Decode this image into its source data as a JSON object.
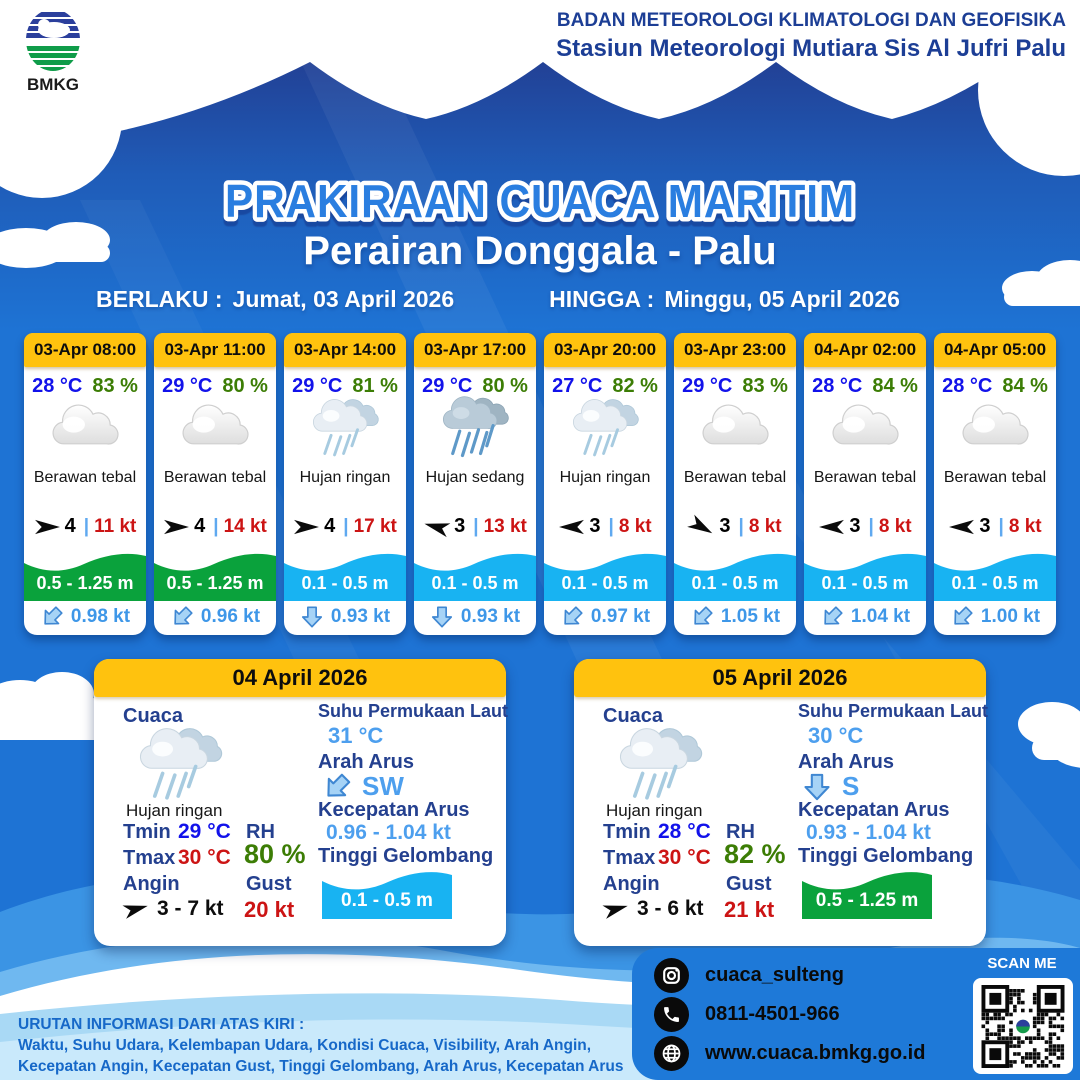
{
  "header": {
    "logo_label": "BMKG",
    "agency_line1": "BADAN METEOROLOGI KLIMATOLOGI DAN GEOFISIKA",
    "agency_line2": "Stasiun Meteorologi Mutiara Sis Al Jufri Palu"
  },
  "title": {
    "main": "PRAKIRAAN CUACA MARITIM",
    "subtitle": "Perairan Donggala - Palu",
    "valid_from_label": "BERLAKU :",
    "valid_from_value": "Jumat, 03 April 2026",
    "valid_to_label": "HINGGA :",
    "valid_to_value": "Minggu, 05 April 2026"
  },
  "misc": {
    "divider": "|"
  },
  "hourly": [
    {
      "time": "03-Apr 08:00",
      "temp": "28 °C",
      "humidity": "83 %",
      "icon": "berawan-tebal",
      "condition": "Berawan tebal",
      "visibility": "4",
      "wind_speed": "11 kt",
      "wind_dir_deg": 0,
      "wave_height": "0.5 - 1.25 m",
      "wave_color": "#0AA23C",
      "current_speed": "0.98 kt",
      "current_dir": "SW",
      "current_dir_deg": 45
    },
    {
      "time": "03-Apr 11:00",
      "temp": "29 °C",
      "humidity": "80 %",
      "icon": "berawan-tebal",
      "condition": "Berawan tebal",
      "visibility": "4",
      "wind_speed": "14 kt",
      "wind_dir_deg": 0,
      "wave_height": "0.5 - 1.25 m",
      "wave_color": "#0AA23C",
      "current_speed": "0.96 kt",
      "current_dir": "SW",
      "current_dir_deg": 45
    },
    {
      "time": "03-Apr 14:00",
      "temp": "29 °C",
      "humidity": "81 %",
      "icon": "hujan-ringan",
      "condition": "Hujan ringan",
      "visibility": "4",
      "wind_speed": "17 kt",
      "wind_dir_deg": 0,
      "wave_height": "0.1 - 0.5 m",
      "wave_color": "#18B3F2",
      "current_speed": "0.93 kt",
      "current_dir": "S",
      "current_dir_deg": 0
    },
    {
      "time": "03-Apr 17:00",
      "temp": "29 °C",
      "humidity": "80 %",
      "icon": "hujan-sedang",
      "condition": "Hujan sedang",
      "visibility": "3",
      "wind_speed": "13 kt",
      "wind_dir_deg": 195,
      "wave_height": "0.1 - 0.5 m",
      "wave_color": "#18B3F2",
      "current_speed": "0.93 kt",
      "current_dir": "S",
      "current_dir_deg": 0
    },
    {
      "time": "03-Apr 20:00",
      "temp": "27 °C",
      "humidity": "82 %",
      "icon": "hujan-ringan",
      "condition": "Hujan ringan",
      "visibility": "3",
      "wind_speed": "8 kt",
      "wind_dir_deg": 180,
      "wave_height": "0.1 - 0.5 m",
      "wave_color": "#18B3F2",
      "current_speed": "0.97 kt",
      "current_dir": "SW",
      "current_dir_deg": 45
    },
    {
      "time": "03-Apr 23:00",
      "temp": "29 °C",
      "humidity": "83 %",
      "icon": "berawan-tebal",
      "condition": "Berawan tebal",
      "visibility": "3",
      "wind_speed": "8 kt",
      "wind_dir_deg": 30,
      "wave_height": "0.1 - 0.5 m",
      "wave_color": "#18B3F2",
      "current_speed": "1.05 kt",
      "current_dir": "SW",
      "current_dir_deg": 45
    },
    {
      "time": "04-Apr 02:00",
      "temp": "28 °C",
      "humidity": "84 %",
      "icon": "berawan-tebal",
      "condition": "Berawan tebal",
      "visibility": "3",
      "wind_speed": "8 kt",
      "wind_dir_deg": 180,
      "wave_height": "0.1 - 0.5 m",
      "wave_color": "#18B3F2",
      "current_speed": "1.04 kt",
      "current_dir": "SW",
      "current_dir_deg": 45
    },
    {
      "time": "04-Apr 05:00",
      "temp": "28 °C",
      "humidity": "84 %",
      "icon": "berawan-tebal",
      "condition": "Berawan tebal",
      "visibility": "3",
      "wind_speed": "8 kt",
      "wind_dir_deg": 180,
      "wave_height": "0.1 - 0.5 m",
      "wave_color": "#18B3F2",
      "current_speed": "1.00 kt",
      "current_dir": "SW",
      "current_dir_deg": 45
    }
  ],
  "daily": [
    {
      "date": "04 April 2026",
      "cuaca_label": "Cuaca",
      "icon": "hujan-ringan",
      "condition": "Hujan ringan",
      "tmin_label": "Tmin",
      "tmin": "29 °C",
      "tmax_label": "Tmax",
      "tmax": "30 °C",
      "angin_label": "Angin",
      "wind_range": "3  - 7 kt",
      "wind_dir_deg": -15,
      "rh_label": "RH",
      "rh": "80 %",
      "gust_label": "Gust",
      "gust": "20 kt",
      "sst_label": "Suhu Permukaan Laut",
      "sst": "31 °C",
      "current_dir_label": "Arah Arus",
      "current_dir": "SW",
      "current_dir_deg": 45,
      "current_speed_label": "Kecepatan Arus",
      "current_speed": "0.96 - 1.04 kt",
      "wave_label": "Tinggi Gelombang",
      "wave_height": "0.1 - 0.5 m",
      "wave_color": "#18B3F2"
    },
    {
      "date": "05 April 2026",
      "cuaca_label": "Cuaca",
      "icon": "hujan-ringan",
      "condition": "Hujan ringan",
      "tmin_label": "Tmin",
      "tmin": "28 °C",
      "tmax_label": "Tmax",
      "tmax": "30 °C",
      "angin_label": "Angin",
      "wind_range": "3  - 6 kt",
      "wind_dir_deg": -15,
      "rh_label": "RH",
      "rh": "82 %",
      "gust_label": "Gust",
      "gust": "21 kt",
      "sst_label": "Suhu Permukaan Laut",
      "sst": "30 °C",
      "current_dir_label": "Arah Arus",
      "current_dir": "S",
      "current_dir_deg": 0,
      "current_speed_label": "Kecepatan Arus",
      "current_speed": "0.93 - 1.04 kt",
      "wave_label": "Tinggi Gelombang",
      "wave_height": "0.5 - 1.25 m",
      "wave_color": "#0AA23C"
    }
  ],
  "footer": {
    "legend_title": "URUTAN INFORMASI DARI ATAS KIRI :",
    "legend_line2": "Waktu, Suhu Udara, Kelembapan Udara, Kondisi Cuaca, Visibility, Arah Angin,",
    "legend_line3": "Kecepatan Angin, Kecepatan Gust, Tinggi Gelombang, Arah Arus, Kecepatan Arus",
    "instagram": "cuaca_sulteng",
    "phone": "0811-4501-966",
    "website": "www.cuaca.bmkg.go.id",
    "scan_me_label": "SCAN ME"
  },
  "colors": {
    "bg_blue": "#1E73D4",
    "header_yellow": "#FFC20E",
    "temp_blue": "#1212EA",
    "humidity_green": "#3C7D05",
    "wind_red": "#CC1414",
    "wave_green": "#0AA23C",
    "wave_cyan": "#18B3F2",
    "current_blue": "#3E97E8",
    "label_navy": "#24408F",
    "value_light_blue": "#4D9FEE",
    "agency_navy": "#1C3E95",
    "legend_blue": "#1668C8"
  }
}
